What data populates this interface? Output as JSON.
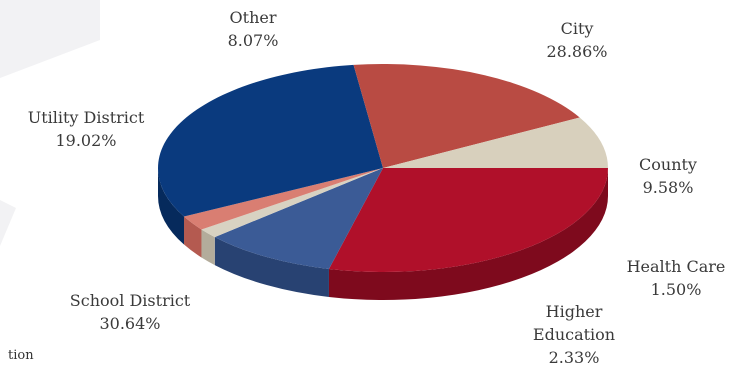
{
  "chart_data": {
    "type": "pie",
    "style": "3d",
    "title": "",
    "slices": [
      {
        "name": "City",
        "value": 28.86,
        "label": "28.86%",
        "color": "#b0102a",
        "side_color": "#7e0a1d"
      },
      {
        "name": "County",
        "value": 9.58,
        "label": "9.58%",
        "color": "#3b5b96",
        "side_color": "#284272"
      },
      {
        "name": "Health Care",
        "value": 1.5,
        "label": "1.50%",
        "color": "#d8d2c2",
        "side_color": "#b3ac9b"
      },
      {
        "name": "Higher Education",
        "value": 2.33,
        "label": "2.33%",
        "color": "#d97e72",
        "side_color": "#b45a50"
      },
      {
        "name": "School District",
        "value": 30.64,
        "label": "30.64%",
        "color": "#0a3a7e",
        "side_color": "#062a5c"
      },
      {
        "name": "Utility District",
        "value": 19.02,
        "label": "19.02%",
        "color": "#b94b43",
        "side_color": "#8e3530"
      },
      {
        "name": "Other",
        "value": 8.07,
        "label": "8.07%",
        "color": "#d8d0bd",
        "side_color": "#b5ac97"
      }
    ]
  },
  "partial_text": "tion"
}
